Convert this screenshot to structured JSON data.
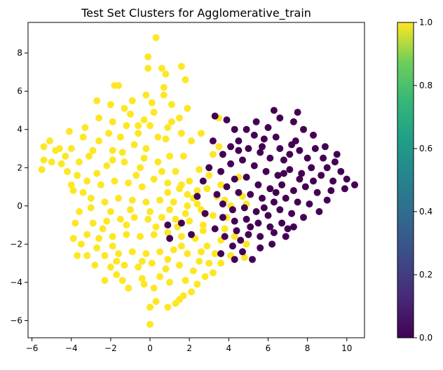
{
  "chart_data": {
    "type": "scatter",
    "title": "Test Set Clusters for Agglomerative_train",
    "xlabel": "",
    "ylabel": "",
    "xlim": [
      -6.2,
      10.9
    ],
    "ylim": [
      -6.9,
      9.6
    ],
    "xticks": [
      -6,
      -4,
      -2,
      0,
      2,
      4,
      6,
      8,
      10
    ],
    "yticks": [
      -6,
      -4,
      -2,
      0,
      2,
      4,
      6,
      8
    ],
    "grid": false,
    "colorbar": {
      "colormap": "viridis",
      "range": [
        0.0,
        1.0
      ],
      "ticks": [
        "0.0",
        "0.2",
        "0.4",
        "0.6",
        "0.8",
        "1.0"
      ]
    },
    "series": [
      {
        "cluster_value": 1.0,
        "color": "#fde725",
        "points": [
          [
            0.3,
            8.8
          ],
          [
            -0.1,
            7.8
          ],
          [
            0.6,
            7.2
          ],
          [
            0.8,
            6.9
          ],
          [
            1.6,
            7.3
          ],
          [
            -0.1,
            7.2
          ],
          [
            1.8,
            6.6
          ],
          [
            0.7,
            6.2
          ],
          [
            0.7,
            5.8
          ],
          [
            -0.2,
            5.8
          ],
          [
            1.1,
            5.3
          ],
          [
            -1.8,
            6.3
          ],
          [
            -1.6,
            6.3
          ],
          [
            1.9,
            5.1
          ],
          [
            1.5,
            4.6
          ],
          [
            0.1,
            5.4
          ],
          [
            -0.9,
            5.5
          ],
          [
            -2.7,
            5.5
          ],
          [
            -5.4,
            3.1
          ],
          [
            -5.1,
            3.4
          ],
          [
            -5.4,
            2.4
          ],
          [
            -5.0,
            2.3
          ],
          [
            -5.5,
            1.9
          ],
          [
            -4.8,
            2.9
          ],
          [
            -4.1,
            3.9
          ],
          [
            -4.6,
            3.0
          ],
          [
            -4.5,
            2.2
          ],
          [
            -4.0,
            1.1
          ],
          [
            -3.9,
            0.8
          ],
          [
            -4.2,
            1.8
          ],
          [
            -3.6,
            -0.3
          ],
          [
            -3.8,
            -0.9
          ],
          [
            -3.9,
            -1.7
          ],
          [
            -3.5,
            -2.0
          ],
          [
            -3.7,
            -2.6
          ],
          [
            -3.2,
            -2.6
          ],
          [
            -2.3,
            -3.9
          ],
          [
            -1.7,
            -3.6
          ],
          [
            -1.4,
            -3.9
          ],
          [
            -1.1,
            -4.3
          ],
          [
            -0.4,
            -3.8
          ],
          [
            0.2,
            -4.3
          ],
          [
            0.0,
            -5.3
          ],
          [
            0.3,
            -5.0
          ],
          [
            0.0,
            -6.2
          ],
          [
            0.9,
            -5.3
          ],
          [
            1.3,
            -5.1
          ],
          [
            1.5,
            -4.9
          ],
          [
            1.7,
            -4.7
          ],
          [
            2.1,
            -4.5
          ],
          [
            2.4,
            -4.1
          ],
          [
            2.8,
            -3.7
          ],
          [
            3.2,
            -3.5
          ],
          [
            3.6,
            -3.0
          ],
          [
            4.1,
            -2.6
          ],
          [
            4.8,
            -2.7
          ],
          [
            4.9,
            -2.0
          ],
          [
            3.6,
            -1.8
          ],
          [
            2.9,
            -2.1
          ],
          [
            3.9,
            -0.6
          ],
          [
            4.1,
            0.0
          ],
          [
            4.5,
            1.5
          ],
          [
            3.2,
            2.7
          ],
          [
            3.5,
            3.1
          ],
          [
            2.1,
            3.4
          ],
          [
            3.5,
            4.6
          ],
          [
            1.6,
            3.8
          ],
          [
            0.0,
            4.2
          ],
          [
            -0.3,
            4.5
          ],
          [
            -1.0,
            4.8
          ],
          [
            -1.9,
            4.4
          ],
          [
            -2.6,
            4.6
          ],
          [
            -3.3,
            4.1
          ],
          [
            -3.1,
            2.6
          ],
          [
            -2.6,
            3.4
          ],
          [
            -2.2,
            2.1
          ],
          [
            -1.9,
            2.9
          ],
          [
            -1.5,
            3.6
          ],
          [
            -1.3,
            2.3
          ],
          [
            -0.8,
            3.2
          ],
          [
            -0.5,
            2.0
          ],
          [
            -0.2,
            3.0
          ],
          [
            0.4,
            2.3
          ],
          [
            0.8,
            3.5
          ],
          [
            1.0,
            2.6
          ],
          [
            1.3,
            1.8
          ],
          [
            1.7,
            2.6
          ],
          [
            2.0,
            1.3
          ],
          [
            2.5,
            1.9
          ],
          [
            2.9,
            0.9
          ],
          [
            2.2,
            0.4
          ],
          [
            1.5,
            0.9
          ],
          [
            0.9,
            1.2
          ],
          [
            0.2,
            1.4
          ],
          [
            -0.4,
            1.0
          ],
          [
            -1.1,
            1.2
          ],
          [
            -1.8,
            1.3
          ],
          [
            -2.5,
            1.1
          ],
          [
            -3.2,
            1.3
          ],
          [
            -3.0,
            0.4
          ],
          [
            -2.3,
            0.2
          ],
          [
            -1.6,
            0.4
          ],
          [
            -0.9,
            0.3
          ],
          [
            -0.2,
            0.2
          ],
          [
            0.5,
            0.3
          ],
          [
            1.2,
            0.2
          ],
          [
            1.9,
            0.0
          ],
          [
            2.6,
            -0.2
          ],
          [
            3.2,
            -0.5
          ],
          [
            2.7,
            -1.0
          ],
          [
            2.0,
            -0.8
          ],
          [
            1.3,
            -0.7
          ],
          [
            0.6,
            -0.6
          ],
          [
            -0.1,
            -0.7
          ],
          [
            -0.8,
            -0.6
          ],
          [
            -1.5,
            -0.7
          ],
          [
            -2.2,
            -0.8
          ],
          [
            -2.9,
            -0.9
          ],
          [
            -3.2,
            -1.5
          ],
          [
            -2.6,
            -1.7
          ],
          [
            -1.9,
            -1.6
          ],
          [
            -1.2,
            -1.5
          ],
          [
            -0.5,
            -1.6
          ],
          [
            0.2,
            -1.5
          ],
          [
            0.9,
            -1.4
          ],
          [
            1.6,
            -1.6
          ],
          [
            2.3,
            -1.7
          ],
          [
            2.6,
            -2.4
          ],
          [
            1.9,
            -2.5
          ],
          [
            1.2,
            -2.3
          ],
          [
            0.5,
            -2.4
          ],
          [
            -0.2,
            -2.5
          ],
          [
            -0.9,
            -2.4
          ],
          [
            -1.6,
            -2.5
          ],
          [
            -2.3,
            -2.6
          ],
          [
            -2.8,
            -3.1
          ],
          [
            -2.0,
            -3.2
          ],
          [
            -1.3,
            -3.1
          ],
          [
            -0.6,
            -3.2
          ],
          [
            0.1,
            -3.0
          ],
          [
            0.8,
            -3.3
          ],
          [
            1.5,
            -3.1
          ],
          [
            2.2,
            -3.4
          ],
          [
            2.5,
            -2.9
          ],
          [
            1.8,
            -3.9
          ],
          [
            1.0,
            -4.0
          ],
          [
            0.5,
            -3.7
          ],
          [
            -0.3,
            -4.1
          ],
          [
            -1.9,
            -2.1
          ],
          [
            -2.7,
            -2.2
          ],
          [
            -3.0,
            -0.1
          ],
          [
            -2.0,
            -0.3
          ],
          [
            -1.0,
            -0.2
          ],
          [
            0.0,
            -0.3
          ],
          [
            1.0,
            -0.2
          ],
          [
            1.8,
            -0.4
          ],
          [
            2.4,
            0.8
          ],
          [
            3.0,
            1.6
          ],
          [
            3.6,
            1.1
          ],
          [
            3.8,
            -1.2
          ],
          [
            3.3,
            -2.5
          ],
          [
            3.0,
            -3.0
          ],
          [
            4.3,
            -1.6
          ],
          [
            4.7,
            0.5
          ],
          [
            4.9,
            0.1
          ],
          [
            3.8,
            0.3
          ],
          [
            -1.2,
            4.2
          ],
          [
            -0.6,
            3.8
          ],
          [
            0.4,
            3.6
          ],
          [
            1.1,
            4.4
          ],
          [
            2.6,
            3.8
          ],
          [
            -2.9,
            2.9
          ],
          [
            -3.6,
            2.3
          ],
          [
            -4.3,
            2.6
          ],
          [
            -2.1,
            3.8
          ],
          [
            -1.4,
            2.8
          ],
          [
            -0.3,
            2.5
          ],
          [
            0.6,
            1.8
          ],
          [
            1.6,
            1.1
          ],
          [
            2.4,
            0.1
          ],
          [
            -2.4,
            -1.2
          ],
          [
            -1.2,
            -1.0
          ],
          [
            0.3,
            -1.1
          ],
          [
            1.4,
            -1.1
          ],
          [
            2.7,
            -1.3
          ],
          [
            -1.7,
            -2.9
          ],
          [
            -0.4,
            -2.9
          ],
          [
            0.9,
            -2.8
          ],
          [
            1.6,
            -2.1
          ],
          [
            -3.4,
            0.7
          ],
          [
            -2.7,
            1.7
          ],
          [
            -1.9,
            2.4
          ],
          [
            -0.7,
            1.6
          ],
          [
            0.9,
            0.7
          ],
          [
            1.9,
            0.6
          ],
          [
            3.4,
            0.5
          ],
          [
            -2.0,
            5.3
          ],
          [
            -1.3,
            5.1
          ],
          [
            -0.6,
            4.2
          ],
          [
            0.2,
            4.9
          ],
          [
            0.9,
            4.1
          ],
          [
            -4.0,
            3.0
          ],
          [
            -3.4,
            3.6
          ],
          [
            -3.7,
            1.6
          ]
        ]
      },
      {
        "cluster_value": 0.0,
        "color": "#440154",
        "points": [
          [
            6.3,
            5.0
          ],
          [
            7.5,
            4.9
          ],
          [
            7.3,
            4.4
          ],
          [
            5.4,
            4.4
          ],
          [
            6.6,
            4.6
          ],
          [
            4.9,
            4.0
          ],
          [
            3.3,
            4.7
          ],
          [
            3.9,
            4.5
          ],
          [
            4.3,
            4.0
          ],
          [
            5.3,
            3.7
          ],
          [
            4.5,
            3.4
          ],
          [
            5.8,
            3.5
          ],
          [
            6.4,
            3.6
          ],
          [
            7.4,
            3.4
          ],
          [
            7.8,
            4.0
          ],
          [
            8.3,
            3.7
          ],
          [
            5.0,
            3.0
          ],
          [
            5.6,
            2.8
          ],
          [
            6.1,
            2.5
          ],
          [
            6.6,
            3.0
          ],
          [
            7.1,
            2.7
          ],
          [
            7.6,
            2.9
          ],
          [
            8.4,
            3.0
          ],
          [
            8.8,
            2.5
          ],
          [
            9.0,
            2.0
          ],
          [
            9.4,
            2.3
          ],
          [
            9.7,
            1.8
          ],
          [
            10.0,
            1.4
          ],
          [
            10.4,
            1.1
          ],
          [
            9.9,
            0.9
          ],
          [
            9.3,
            1.3
          ],
          [
            8.7,
            1.6
          ],
          [
            8.2,
            2.0
          ],
          [
            7.7,
            1.7
          ],
          [
            7.1,
            1.9
          ],
          [
            6.5,
            1.6
          ],
          [
            5.9,
            1.8
          ],
          [
            5.3,
            2.1
          ],
          [
            4.7,
            2.4
          ],
          [
            4.1,
            2.2
          ],
          [
            3.6,
            1.8
          ],
          [
            4.3,
            1.4
          ],
          [
            4.9,
            1.5
          ],
          [
            5.5,
            1.1
          ],
          [
            6.1,
            0.9
          ],
          [
            6.7,
            1.1
          ],
          [
            7.3,
            0.8
          ],
          [
            7.9,
            1.0
          ],
          [
            8.5,
            0.7
          ],
          [
            9.0,
            0.3
          ],
          [
            8.6,
            -0.3
          ],
          [
            8.1,
            0.1
          ],
          [
            7.5,
            0.2
          ],
          [
            6.9,
            0.4
          ],
          [
            6.3,
            0.2
          ],
          [
            5.7,
            0.4
          ],
          [
            5.1,
            0.6
          ],
          [
            4.5,
            0.7
          ],
          [
            3.9,
            1.0
          ],
          [
            3.4,
            0.6
          ],
          [
            3.7,
            0.1
          ],
          [
            4.2,
            -0.2
          ],
          [
            4.8,
            -0.1
          ],
          [
            5.4,
            -0.3
          ],
          [
            6.0,
            -0.5
          ],
          [
            6.6,
            -0.2
          ],
          [
            7.2,
            -0.4
          ],
          [
            7.8,
            -0.6
          ],
          [
            7.3,
            -1.1
          ],
          [
            6.7,
            -0.9
          ],
          [
            6.1,
            -1.1
          ],
          [
            5.5,
            -0.9
          ],
          [
            4.9,
            -0.7
          ],
          [
            4.3,
            -0.8
          ],
          [
            3.7,
            -0.6
          ],
          [
            4.4,
            -1.3
          ],
          [
            5.0,
            -1.5
          ],
          [
            5.6,
            -1.6
          ],
          [
            6.3,
            -1.4
          ],
          [
            6.9,
            -1.6
          ],
          [
            6.2,
            -2.0
          ],
          [
            5.6,
            -2.2
          ],
          [
            5.2,
            -2.8
          ],
          [
            4.7,
            -2.4
          ],
          [
            4.2,
            -2.1
          ],
          [
            3.8,
            -1.6
          ],
          [
            3.3,
            -1.2
          ],
          [
            2.8,
            -0.4
          ],
          [
            2.4,
            0.5
          ],
          [
            2.7,
            1.3
          ],
          [
            3.0,
            2.0
          ],
          [
            3.7,
            2.7
          ],
          [
            4.5,
            2.9
          ],
          [
            2.1,
            -1.5
          ],
          [
            1.6,
            -0.9
          ],
          [
            1.0,
            -1.7
          ],
          [
            0.9,
            -1.0
          ],
          [
            6.8,
            2.4
          ],
          [
            7.2,
            3.2
          ],
          [
            8.0,
            2.5
          ],
          [
            8.9,
            3.1
          ],
          [
            9.5,
            2.7
          ],
          [
            6.0,
            4.1
          ],
          [
            5.7,
            3.1
          ],
          [
            4.1,
            3.1
          ],
          [
            3.2,
            3.4
          ],
          [
            6.8,
            1.7
          ],
          [
            7.6,
            1.4
          ],
          [
            8.3,
            1.3
          ],
          [
            9.2,
            0.8
          ],
          [
            6.4,
            0.7
          ],
          [
            5.8,
            -0.1
          ],
          [
            7.0,
            -1.2
          ],
          [
            5.1,
            -1.1
          ],
          [
            4.6,
            -1.8
          ],
          [
            3.6,
            -2.5
          ],
          [
            4.3,
            -2.8
          ]
        ]
      }
    ]
  }
}
